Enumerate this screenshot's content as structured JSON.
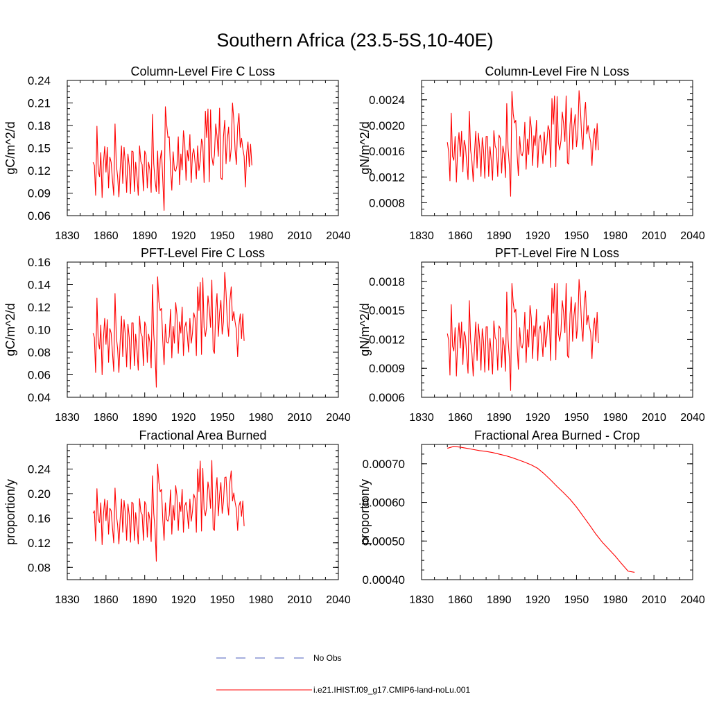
{
  "figure": {
    "title": "Southern Africa (23.5-5S,10-40E)",
    "legend": [
      {
        "label": "No Obs",
        "style": "dashed",
        "color": "#4b5dbd"
      },
      {
        "label": "i.e21.IHIST.f09_g17.CMIP6-land-noLu.001",
        "style": "solid",
        "color": "#ff0000"
      }
    ]
  },
  "chart_data": [
    {
      "type": "line",
      "title": "Column-Level Fire C Loss",
      "ylabel": "gC/m^2/d",
      "xlim": [
        1830,
        2040
      ],
      "ylim": [
        0.06,
        0.24
      ],
      "xticks": [
        1830,
        1860,
        1890,
        1920,
        1950,
        1980,
        2010,
        2040
      ],
      "yticks": [
        "0.06",
        "0.09",
        "0.12",
        "0.15",
        "0.18",
        "0.21",
        "0.24"
      ],
      "series": [
        {
          "color": "#ff0000",
          "x_start": 1850,
          "x_step": 1,
          "values": [
            0.131,
            0.127,
            0.087,
            0.179,
            0.119,
            0.112,
            0.144,
            0.084,
            0.129,
            0.152,
            0.118,
            0.151,
            0.097,
            0.138,
            0.131,
            0.108,
            0.087,
            0.182,
            0.128,
            0.112,
            0.085,
            0.122,
            0.153,
            0.103,
            0.151,
            0.129,
            0.091,
            0.142,
            0.126,
            0.089,
            0.146,
            0.145,
            0.092,
            0.131,
            0.112,
            0.087,
            0.153,
            0.132,
            0.128,
            0.093,
            0.146,
            0.141,
            0.097,
            0.131,
            0.121,
            0.091,
            0.195,
            0.129,
            0.107,
            0.092,
            0.146,
            0.089,
            0.135,
            0.147,
            0.107,
            0.067,
            0.205,
            0.181,
            0.164,
            0.165,
            0.122,
            0.094,
            0.145,
            0.121,
            0.119,
            0.127,
            0.165,
            0.101,
            0.142,
            0.121,
            0.173,
            0.157,
            0.107,
            0.147,
            0.133,
            0.168,
            0.104,
            0.142,
            0.149,
            0.131,
            0.109,
            0.153,
            0.12,
            0.133,
            0.162,
            0.155,
            0.104,
            0.199,
            0.164,
            0.202,
            0.105,
            0.201,
            0.138,
            0.127,
            0.141,
            0.182,
            0.166,
            0.139,
            0.203,
            0.11,
            0.108,
            0.165,
            0.187,
            0.129,
            0.162,
            0.178,
            0.132,
            0.149,
            0.21,
            0.188,
            0.148,
            0.128,
            0.179,
            0.196,
            0.151,
            0.163,
            0.149,
            0.139,
            0.098,
            0.144,
            0.158,
            0.125,
            0.155,
            0.127
          ]
        }
      ]
    },
    {
      "type": "line",
      "title": "Column-Level Fire N Loss",
      "ylabel": "gN/m^2/d",
      "xlim": [
        1830,
        2040
      ],
      "ylim": [
        0.0006,
        0.0027
      ],
      "xticks": [
        1830,
        1860,
        1890,
        1920,
        1950,
        1980,
        2010,
        2040
      ],
      "yticks": [
        "0.0008",
        "0.0012",
        "0.0016",
        "0.0020",
        "0.0024"
      ],
      "series": [
        {
          "color": "#ff0000",
          "x_start": 1850,
          "x_step": 1,
          "values": [
            0.00174,
            0.00159,
            0.00114,
            0.00219,
            0.00152,
            0.00146,
            0.00183,
            0.00112,
            0.00165,
            0.00189,
            0.00152,
            0.00191,
            0.00128,
            0.00177,
            0.00168,
            0.00141,
            0.00116,
            0.00222,
            0.00162,
            0.00145,
            0.00113,
            0.00157,
            0.00191,
            0.00134,
            0.00188,
            0.00165,
            0.00121,
            0.00181,
            0.00162,
            0.00118,
            0.00183,
            0.00183,
            0.00121,
            0.00167,
            0.00145,
            0.00115,
            0.00192,
            0.00168,
            0.00163,
            0.00121,
            0.00185,
            0.0018,
            0.00126,
            0.00168,
            0.00156,
            0.00119,
            0.00234,
            0.00165,
            0.00138,
            0.0009,
            0.00253,
            0.00218,
            0.00204,
            0.00208,
            0.00156,
            0.00122,
            0.00183,
            0.00156,
            0.00153,
            0.00163,
            0.00205,
            0.00132,
            0.00179,
            0.00155,
            0.00214,
            0.00196,
            0.00138,
            0.00184,
            0.00169,
            0.00208,
            0.00135,
            0.00179,
            0.00185,
            0.00167,
            0.00141,
            0.0019,
            0.00154,
            0.0017,
            0.002,
            0.00192,
            0.00135,
            0.00242,
            0.00202,
            0.00246,
            0.00136,
            0.00245,
            0.00173,
            0.00162,
            0.00177,
            0.00221,
            0.00203,
            0.00175,
            0.00246,
            0.00142,
            0.0014,
            0.00201,
            0.00227,
            0.00163,
            0.00198,
            0.00217,
            0.00167,
            0.00186,
            0.00254,
            0.00227,
            0.00184,
            0.00163,
            0.00216,
            0.00236,
            0.00187,
            0.002,
            0.00184,
            0.00174,
            0.00138,
            0.0018,
            0.00195,
            0.00162,
            0.00203,
            0.00162
          ]
        }
      ]
    },
    {
      "type": "line",
      "title": "PFT-Level Fire C Loss",
      "ylabel": "gC/m^2/d",
      "xlim": [
        1830,
        2040
      ],
      "ylim": [
        0.04,
        0.16
      ],
      "xticks": [
        1830,
        1860,
        1890,
        1920,
        1950,
        1980,
        2010,
        2040
      ],
      "yticks": [
        "0.04",
        "0.06",
        "0.08",
        "0.10",
        "0.12",
        "0.14",
        "0.16"
      ],
      "series": [
        {
          "color": "#ff0000",
          "x_start": 1850,
          "x_step": 1,
          "values": [
            0.097,
            0.093,
            0.062,
            0.128,
            0.089,
            0.083,
            0.104,
            0.06,
            0.092,
            0.11,
            0.087,
            0.109,
            0.071,
            0.101,
            0.097,
            0.08,
            0.063,
            0.132,
            0.094,
            0.083,
            0.062,
            0.09,
            0.112,
            0.076,
            0.109,
            0.095,
            0.067,
            0.105,
            0.093,
            0.065,
            0.106,
            0.106,
            0.068,
            0.096,
            0.082,
            0.064,
            0.112,
            0.097,
            0.094,
            0.068,
            0.107,
            0.103,
            0.071,
            0.096,
            0.089,
            0.066,
            0.14,
            0.096,
            0.079,
            0.049,
            0.147,
            0.125,
            0.117,
            0.119,
            0.09,
            0.069,
            0.105,
            0.089,
            0.088,
            0.094,
            0.118,
            0.075,
            0.103,
            0.088,
            0.124,
            0.113,
            0.079,
            0.107,
            0.097,
            0.12,
            0.077,
            0.102,
            0.107,
            0.095,
            0.08,
            0.11,
            0.088,
            0.097,
            0.115,
            0.11,
            0.077,
            0.138,
            0.117,
            0.142,
            0.078,
            0.146,
            0.102,
            0.094,
            0.103,
            0.13,
            0.119,
            0.102,
            0.144,
            0.082,
            0.079,
            0.117,
            0.132,
            0.094,
            0.115,
            0.126,
            0.096,
            0.107,
            0.151,
            0.133,
            0.107,
            0.094,
            0.126,
            0.138,
            0.108,
            0.116,
            0.107,
            0.1,
            0.076,
            0.104,
            0.114,
            0.092,
            0.114,
            0.09
          ]
        }
      ]
    },
    {
      "type": "line",
      "title": "PFT-Level Fire N Loss",
      "ylabel": "gN/m^2/d",
      "xlim": [
        1830,
        2040
      ],
      "ylim": [
        0.0006,
        0.002
      ],
      "xticks": [
        1830,
        1860,
        1890,
        1920,
        1950,
        1980,
        2010,
        2040
      ],
      "yticks": [
        "0.0006",
        "0.0009",
        "0.0012",
        "0.0015",
        "0.0018"
      ],
      "series": [
        {
          "color": "#ff0000",
          "x_start": 1850,
          "x_step": 1,
          "values": [
            0.00126,
            0.00119,
            0.00083,
            0.00156,
            0.00113,
            0.00108,
            0.00132,
            0.00082,
            0.00119,
            0.00137,
            0.00111,
            0.00138,
            0.00094,
            0.00128,
            0.00123,
            0.00103,
            0.00085,
            0.0016,
            0.00119,
            0.00106,
            0.00082,
            0.00114,
            0.00138,
            0.00098,
            0.00136,
            0.0012,
            0.00088,
            0.00131,
            0.00118,
            0.00086,
            0.00133,
            0.00133,
            0.00088,
            0.00121,
            0.00106,
            0.00084,
            0.00139,
            0.00122,
            0.00119,
            0.00088,
            0.00134,
            0.00131,
            0.00091,
            0.00122,
            0.00113,
            0.00087,
            0.00169,
            0.0012,
            0.00101,
            0.00067,
            0.00178,
            0.00158,
            0.00148,
            0.00151,
            0.00114,
            0.00089,
            0.00132,
            0.00113,
            0.00111,
            0.00119,
            0.00148,
            0.00096,
            0.0013,
            0.00112,
            0.00155,
            0.00142,
            0.001,
            0.00134,
            0.00123,
            0.00151,
            0.00098,
            0.0013,
            0.00134,
            0.00121,
            0.00102,
            0.00138,
            0.00112,
            0.00123,
            0.00145,
            0.00139,
            0.00098,
            0.00173,
            0.00147,
            0.00178,
            0.00099,
            0.00178,
            0.00126,
            0.00118,
            0.00129,
            0.0016,
            0.00148,
            0.00127,
            0.00178,
            0.00103,
            0.00101,
            0.00146,
            0.00164,
            0.00118,
            0.00144,
            0.00158,
            0.00121,
            0.00135,
            0.00182,
            0.00164,
            0.00133,
            0.00118,
            0.00157,
            0.0017,
            0.00135,
            0.00145,
            0.00134,
            0.00127,
            0.001,
            0.00131,
            0.00142,
            0.00118,
            0.00148,
            0.00116
          ]
        }
      ]
    },
    {
      "type": "line",
      "title": "Fractional Area Burned",
      "ylabel": "proportion/y",
      "xlim": [
        1830,
        2040
      ],
      "ylim": [
        0.06,
        0.28
      ],
      "xticks": [
        1830,
        1860,
        1890,
        1920,
        1950,
        1980,
        2010,
        2040
      ],
      "yticks": [
        "0.08",
        "0.12",
        "0.16",
        "0.20",
        "0.24"
      ],
      "series": [
        {
          "color": "#ff0000",
          "x_start": 1850,
          "x_step": 1,
          "values": [
            0.168,
            0.172,
            0.123,
            0.208,
            0.158,
            0.153,
            0.185,
            0.117,
            0.165,
            0.191,
            0.156,
            0.189,
            0.134,
            0.176,
            0.172,
            0.145,
            0.12,
            0.209,
            0.166,
            0.149,
            0.118,
            0.159,
            0.191,
            0.137,
            0.189,
            0.168,
            0.124,
            0.183,
            0.165,
            0.121,
            0.186,
            0.184,
            0.124,
            0.169,
            0.148,
            0.118,
            0.192,
            0.17,
            0.166,
            0.124,
            0.187,
            0.182,
            0.129,
            0.17,
            0.158,
            0.122,
            0.229,
            0.168,
            0.142,
            0.09,
            0.248,
            0.218,
            0.203,
            0.207,
            0.157,
            0.124,
            0.185,
            0.158,
            0.155,
            0.165,
            0.206,
            0.134,
            0.181,
            0.157,
            0.213,
            0.196,
            0.14,
            0.186,
            0.171,
            0.207,
            0.137,
            0.18,
            0.186,
            0.168,
            0.143,
            0.191,
            0.155,
            0.171,
            0.199,
            0.192,
            0.137,
            0.24,
            0.203,
            0.253,
            0.139,
            0.241,
            0.174,
            0.164,
            0.178,
            0.219,
            0.204,
            0.176,
            0.254,
            0.143,
            0.14,
            0.203,
            0.226,
            0.164,
            0.198,
            0.218,
            0.168,
            0.187,
            0.226,
            0.227,
            0.186,
            0.165,
            0.219,
            0.237,
            0.188,
            0.201,
            0.186,
            0.175,
            0.14,
            0.18,
            0.187,
            0.163,
            0.188,
            0.147
          ]
        }
      ]
    },
    {
      "type": "line",
      "title": "Fractional Area Burned - Crop",
      "ylabel": "proportion/y",
      "xlim": [
        1830,
        2040
      ],
      "ylim": [
        0.0004,
        0.00075
      ],
      "xticks": [
        1830,
        1860,
        1890,
        1920,
        1950,
        1980,
        2010,
        2040
      ],
      "yticks": [
        "0.00040",
        "0.00050",
        "0.00060",
        "0.00070"
      ],
      "series": [
        {
          "color": "#ff0000",
          "x_start": 1850,
          "x_step": 5,
          "values": [
            0.00074,
            0.000745,
            0.000743,
            0.00074,
            0.000737,
            0.000734,
            0.000732,
            0.000729,
            0.000725,
            0.000721,
            0.000716,
            0.00071,
            0.000704,
            0.000697,
            0.000688,
            0.000674,
            0.000658,
            0.000641,
            0.000625,
            0.000608,
            0.000588,
            0.000565,
            0.000542,
            0.000518,
            0.000497,
            0.000479,
            0.000461,
            0.000441,
            0.000422,
            0.000419
          ]
        }
      ]
    }
  ]
}
